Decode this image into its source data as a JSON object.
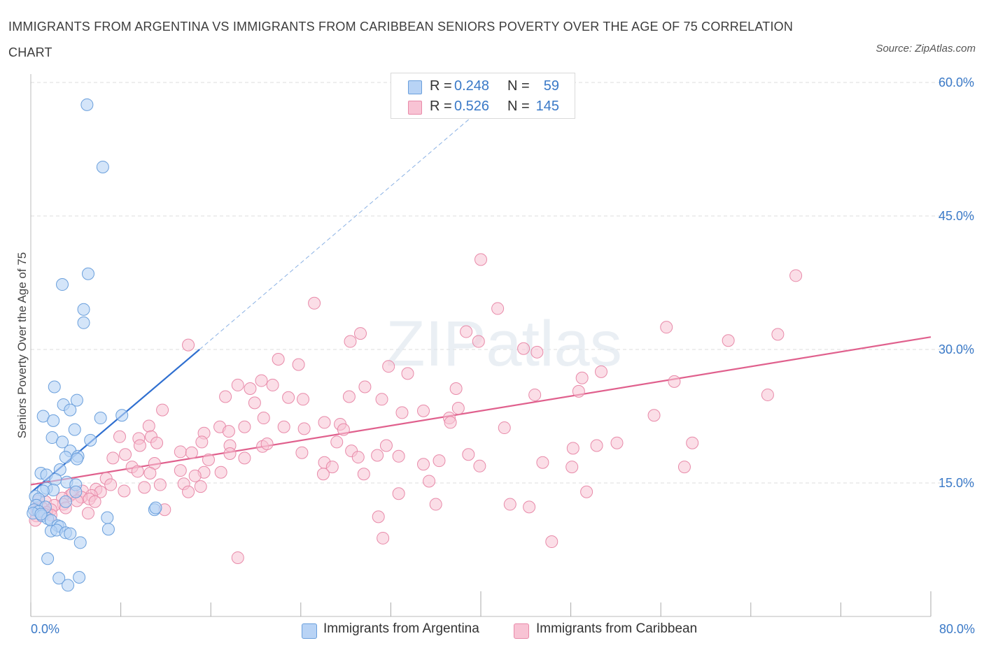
{
  "header": {
    "title": "IMMIGRANTS FROM ARGENTINA VS IMMIGRANTS FROM CARIBBEAN SENIORS POVERTY OVER THE AGE OF 75 CORRELATION CHART",
    "source": "Source: ZipAtlas.com"
  },
  "legend": {
    "r_label": "R =",
    "n_label": "N =",
    "rows": [
      {
        "r": "0.248",
        "n": "59"
      },
      {
        "r": "0.526",
        "n": "145"
      }
    ]
  },
  "bottom_legend": [
    "Immigrants from Argentina",
    "Immigrants from Caribbean"
  ],
  "watermark": "ZIPatlas",
  "colors": {
    "argentina_fill": "#b8d3f5",
    "argentina_stroke": "#6a9fdc",
    "argentina_line": "#2f6fd0",
    "caribbean_fill": "#f8c3d4",
    "caribbean_stroke": "#e88aa9",
    "caribbean_line": "#e0608d",
    "tick_text": "#3a79c7",
    "grid": "#dddddd"
  },
  "chart_data": {
    "type": "scatter",
    "title": "IMMIGRANTS FROM ARGENTINA VS IMMIGRANTS FROM CARIBBEAN SENIORS POVERTY OVER THE AGE OF 75 CORRELATION CHART",
    "xlabel": "",
    "ylabel": "Seniors Poverty Over the Age of 75",
    "xlim": [
      0,
      80
    ],
    "ylim": [
      0,
      60
    ],
    "x_tick_labels": [
      "0.0%",
      "80.0%"
    ],
    "y_ticks": [
      15,
      30,
      45,
      60
    ],
    "y_tick_labels": [
      "15.0%",
      "30.0%",
      "45.0%",
      "60.0%"
    ],
    "grid": true,
    "legend_position": "top-center",
    "series": [
      {
        "name": "Immigrants from Argentina",
        "R": 0.248,
        "N": 59,
        "trend": {
          "x": [
            0.0,
            15.0
          ],
          "y": [
            13.9,
            30.0
          ],
          "extend_dashed_to": [
            40.0,
            57.0
          ]
        },
        "points": [
          [
            5.0,
            57.5
          ],
          [
            6.4,
            50.5
          ],
          [
            5.1,
            38.5
          ],
          [
            2.8,
            37.3
          ],
          [
            4.7,
            34.5
          ],
          [
            4.7,
            33.0
          ],
          [
            2.1,
            25.8
          ],
          [
            4.1,
            24.3
          ],
          [
            2.9,
            23.8
          ],
          [
            3.5,
            23.2
          ],
          [
            1.1,
            22.5
          ],
          [
            2.0,
            22.0
          ],
          [
            6.2,
            22.3
          ],
          [
            8.1,
            22.6
          ],
          [
            3.9,
            21.0
          ],
          [
            1.9,
            20.1
          ],
          [
            2.8,
            19.6
          ],
          [
            5.3,
            19.8
          ],
          [
            3.5,
            18.6
          ],
          [
            4.2,
            18.0
          ],
          [
            3.1,
            17.9
          ],
          [
            4.1,
            17.7
          ],
          [
            2.6,
            16.5
          ],
          [
            0.9,
            16.1
          ],
          [
            1.4,
            15.9
          ],
          [
            2.2,
            15.4
          ],
          [
            3.2,
            15.1
          ],
          [
            4.0,
            14.8
          ],
          [
            1.4,
            14.4
          ],
          [
            2.0,
            14.2
          ],
          [
            1.1,
            14.1
          ],
          [
            4.0,
            14.0
          ],
          [
            0.4,
            13.5
          ],
          [
            0.7,
            13.2
          ],
          [
            3.1,
            12.9
          ],
          [
            0.5,
            12.5
          ],
          [
            1.3,
            12.3
          ],
          [
            0.3,
            12.0
          ],
          [
            0.7,
            11.8
          ],
          [
            0.2,
            11.6
          ],
          [
            1.0,
            11.3
          ],
          [
            1.5,
            11.0
          ],
          [
            0.9,
            11.5
          ],
          [
            11.0,
            12.0
          ],
          [
            11.1,
            12.2
          ],
          [
            6.8,
            11.1
          ],
          [
            1.8,
            10.8
          ],
          [
            2.4,
            10.2
          ],
          [
            2.6,
            10.1
          ],
          [
            1.8,
            9.6
          ],
          [
            2.3,
            9.7
          ],
          [
            3.1,
            9.4
          ],
          [
            3.5,
            9.3
          ],
          [
            6.9,
            9.8
          ],
          [
            4.4,
            8.3
          ],
          [
            1.5,
            6.5
          ],
          [
            2.5,
            4.3
          ],
          [
            4.3,
            4.4
          ],
          [
            3.3,
            3.5
          ]
        ]
      },
      {
        "name": "Immigrants from Caribbean",
        "R": 0.526,
        "N": 145,
        "trend": {
          "x": [
            0.0,
            80.0
          ],
          "y": [
            14.8,
            31.4
          ]
        },
        "points": [
          [
            40.0,
            40.1
          ],
          [
            68.0,
            38.3
          ],
          [
            25.2,
            35.2
          ],
          [
            41.5,
            34.6
          ],
          [
            56.5,
            32.5
          ],
          [
            29.3,
            31.8
          ],
          [
            38.7,
            32.0
          ],
          [
            66.4,
            31.7
          ],
          [
            28.4,
            30.9
          ],
          [
            39.8,
            30.9
          ],
          [
            62.0,
            31.0
          ],
          [
            14.0,
            30.5
          ],
          [
            43.8,
            30.1
          ],
          [
            45.0,
            29.7
          ],
          [
            22.0,
            28.9
          ],
          [
            23.8,
            28.3
          ],
          [
            31.8,
            28.1
          ],
          [
            33.5,
            27.3
          ],
          [
            50.7,
            27.5
          ],
          [
            49.0,
            26.8
          ],
          [
            18.4,
            26.0
          ],
          [
            20.5,
            26.5
          ],
          [
            21.5,
            26.0
          ],
          [
            29.7,
            25.8
          ],
          [
            19.5,
            25.6
          ],
          [
            37.8,
            25.6
          ],
          [
            57.2,
            26.4
          ],
          [
            17.3,
            24.7
          ],
          [
            22.9,
            24.6
          ],
          [
            24.2,
            24.4
          ],
          [
            28.3,
            24.7
          ],
          [
            44.8,
            24.9
          ],
          [
            48.7,
            25.3
          ],
          [
            65.5,
            24.9
          ],
          [
            19.9,
            24.0
          ],
          [
            31.2,
            24.4
          ],
          [
            11.7,
            23.2
          ],
          [
            33.0,
            22.9
          ],
          [
            34.9,
            23.1
          ],
          [
            38.0,
            23.4
          ],
          [
            37.2,
            22.3
          ],
          [
            20.7,
            22.3
          ],
          [
            55.4,
            22.6
          ],
          [
            26.1,
            21.8
          ],
          [
            27.5,
            21.6
          ],
          [
            27.8,
            21.0
          ],
          [
            37.3,
            21.8
          ],
          [
            10.5,
            21.4
          ],
          [
            16.8,
            21.3
          ],
          [
            19.0,
            21.3
          ],
          [
            22.5,
            21.3
          ],
          [
            24.3,
            21.1
          ],
          [
            42.1,
            21.2
          ],
          [
            15.4,
            20.6
          ],
          [
            17.6,
            20.8
          ],
          [
            7.9,
            20.2
          ],
          [
            9.6,
            20.0
          ],
          [
            10.7,
            20.2
          ],
          [
            11.2,
            19.5
          ],
          [
            9.7,
            19.2
          ],
          [
            15.2,
            19.6
          ],
          [
            17.7,
            19.2
          ],
          [
            20.6,
            19.1
          ],
          [
            21.0,
            19.4
          ],
          [
            27.2,
            19.6
          ],
          [
            31.6,
            19.2
          ],
          [
            48.2,
            18.9
          ],
          [
            50.3,
            19.2
          ],
          [
            52.1,
            19.5
          ],
          [
            58.8,
            19.5
          ],
          [
            8.4,
            18.2
          ],
          [
            13.3,
            18.5
          ],
          [
            14.3,
            18.4
          ],
          [
            17.7,
            18.3
          ],
          [
            24.1,
            18.4
          ],
          [
            28.5,
            18.6
          ],
          [
            29.1,
            17.9
          ],
          [
            30.8,
            18.1
          ],
          [
            32.7,
            18.0
          ],
          [
            38.9,
            18.2
          ],
          [
            19.0,
            17.8
          ],
          [
            7.3,
            17.8
          ],
          [
            11.0,
            17.2
          ],
          [
            15.8,
            17.6
          ],
          [
            36.3,
            17.5
          ],
          [
            26.1,
            17.3
          ],
          [
            34.9,
            17.1
          ],
          [
            26.8,
            16.8
          ],
          [
            39.9,
            16.9
          ],
          [
            45.5,
            17.3
          ],
          [
            48.1,
            16.8
          ],
          [
            58.1,
            16.8
          ],
          [
            9.0,
            16.8
          ],
          [
            9.5,
            16.3
          ],
          [
            10.6,
            16.1
          ],
          [
            15.4,
            16.2
          ],
          [
            13.3,
            16.4
          ],
          [
            16.9,
            16.2
          ],
          [
            29.6,
            16.0
          ],
          [
            26.0,
            16.0
          ],
          [
            14.6,
            15.8
          ],
          [
            6.7,
            15.5
          ],
          [
            35.4,
            15.2
          ],
          [
            11.5,
            14.8
          ],
          [
            7.1,
            14.8
          ],
          [
            13.6,
            14.9
          ],
          [
            15.1,
            14.6
          ],
          [
            10.1,
            14.5
          ],
          [
            5.8,
            14.3
          ],
          [
            6.2,
            14.0
          ],
          [
            14.0,
            14.0
          ],
          [
            8.3,
            14.1
          ],
          [
            4.6,
            14.1
          ],
          [
            3.5,
            13.6
          ],
          [
            3.7,
            13.8
          ],
          [
            5.4,
            13.6
          ],
          [
            2.8,
            13.3
          ],
          [
            4.5,
            13.4
          ],
          [
            32.7,
            13.8
          ],
          [
            49.4,
            14.0
          ],
          [
            0.7,
            13.0
          ],
          [
            1.3,
            12.9
          ],
          [
            5.2,
            13.2
          ],
          [
            4.1,
            13.0
          ],
          [
            5.7,
            12.9
          ],
          [
            2.9,
            12.6
          ],
          [
            2.1,
            12.5
          ],
          [
            3.1,
            12.2
          ],
          [
            0.5,
            12.1
          ],
          [
            1.0,
            12.2
          ],
          [
            1.8,
            12.0
          ],
          [
            0.6,
            11.9
          ],
          [
            1.4,
            11.7
          ],
          [
            1.2,
            11.5
          ],
          [
            0.5,
            11.3
          ],
          [
            11.9,
            12.0
          ],
          [
            36.0,
            12.6
          ],
          [
            42.6,
            12.6
          ],
          [
            44.3,
            12.3
          ],
          [
            5.1,
            11.6
          ],
          [
            1.8,
            11.4
          ],
          [
            30.9,
            11.2
          ],
          [
            0.4,
            10.8
          ],
          [
            31.3,
            8.8
          ],
          [
            46.3,
            8.4
          ],
          [
            18.4,
            6.6
          ]
        ]
      }
    ]
  }
}
